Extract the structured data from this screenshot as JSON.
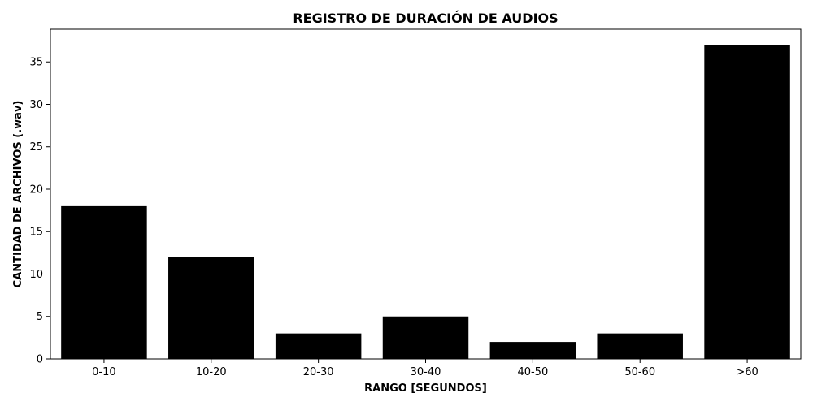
{
  "chart_data": {
    "type": "bar",
    "title": "REGISTRO DE DURACIÓN DE AUDIOS",
    "xlabel": "RANGO [SEGUNDOS]",
    "ylabel": "CANTIDAD DE ARCHIVOS (.wav)",
    "categories": [
      "0-10",
      "10-20",
      "20-30",
      "30-40",
      "40-50",
      "50-60",
      ">60"
    ],
    "values": [
      18,
      12,
      3,
      5,
      2,
      3,
      37
    ],
    "ylim": [
      0,
      38.85
    ],
    "yticks": [
      0,
      5,
      10,
      15,
      20,
      25,
      30,
      35
    ],
    "bar_color": "#000000",
    "grid": false,
    "legend": "none"
  }
}
